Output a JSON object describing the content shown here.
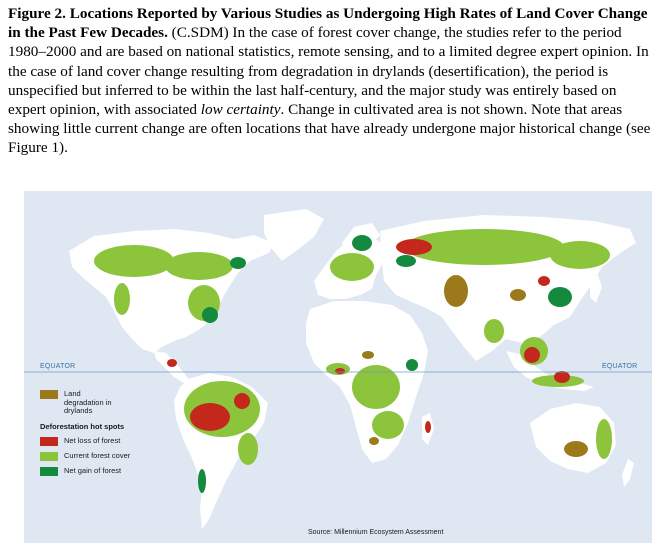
{
  "caption": {
    "label": "Figure 2. Locations Reported by Various Studies as Undergoing High Rates of Land Cover Change in the Past Few Decades.",
    "text_1": " (C.SDM)  In the case of forest cover change, the studies refer to the period 1980–2000 and are based on national statistics, remote sensing, and to a limited degree expert opinion. In the case of land cover change resulting from degradation in drylands (desertification), the period is unspecified but inferred to be within the last half-century, and the major study was entirely based on expert opinion, with associated ",
    "italic": "low certainty",
    "text_2": ".  Change in cultivated area is not shown. Note that areas showing little current change are often locations that have already undergone major historical change (see Figure 1)."
  },
  "map": {
    "equator_left": "EQUATOR",
    "equator_right": "EQUATOR",
    "source": "Source: Millennium Ecosystem Assessment",
    "colors": {
      "ocean": "#dfe7f2",
      "land": "#ffffff",
      "land_degradation": "#9c7a1c",
      "net_loss": "#c4281c",
      "current_forest": "#8cc43c",
      "net_gain": "#138a3e",
      "equator_line": "#6f9ccc"
    }
  },
  "legend": {
    "degradation_label": "Land degradation in drylands",
    "heading": "Deforestation hot spots",
    "loss_label": "Net loss of forest",
    "forest_label": "Current forest cover",
    "gain_label": "Net gain of forest"
  }
}
